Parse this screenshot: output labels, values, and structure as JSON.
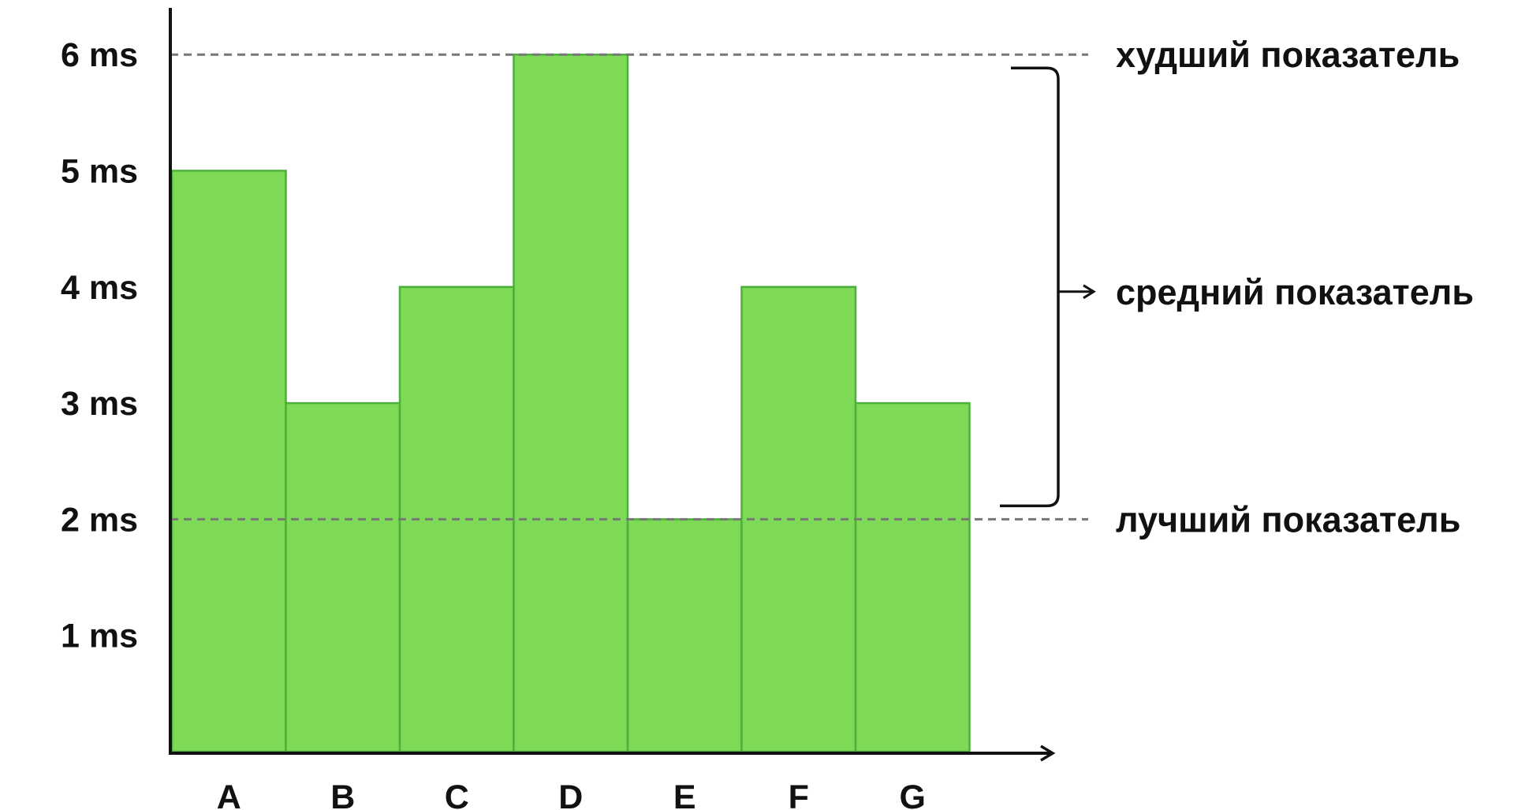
{
  "chart_data": {
    "type": "bar",
    "categories": [
      "A",
      "B",
      "C",
      "D",
      "E",
      "F",
      "G"
    ],
    "values": [
      5,
      3,
      4,
      6,
      2,
      4,
      3
    ],
    "y_ticks": [
      {
        "value": 1,
        "label": "1 ms"
      },
      {
        "value": 2,
        "label": "2 ms"
      },
      {
        "value": 3,
        "label": "3 ms"
      },
      {
        "value": 4,
        "label": "4 ms"
      },
      {
        "value": 5,
        "label": "5 ms"
      },
      {
        "value": 6,
        "label": "6 ms"
      }
    ],
    "ylim": [
      0,
      6.5
    ],
    "grid": false,
    "reference_lines": [
      {
        "value": 6,
        "label": "худший показатель"
      },
      {
        "value": 2,
        "label": "лучший показатель"
      }
    ],
    "bracket": {
      "from": 2,
      "to": 6,
      "label": "средний показатель"
    },
    "colors": {
      "bar_fill": "#7ed957",
      "bar_stroke": "#4caf3a",
      "axis": "#111111",
      "reference_line": "#777777",
      "text": "#111111"
    }
  }
}
